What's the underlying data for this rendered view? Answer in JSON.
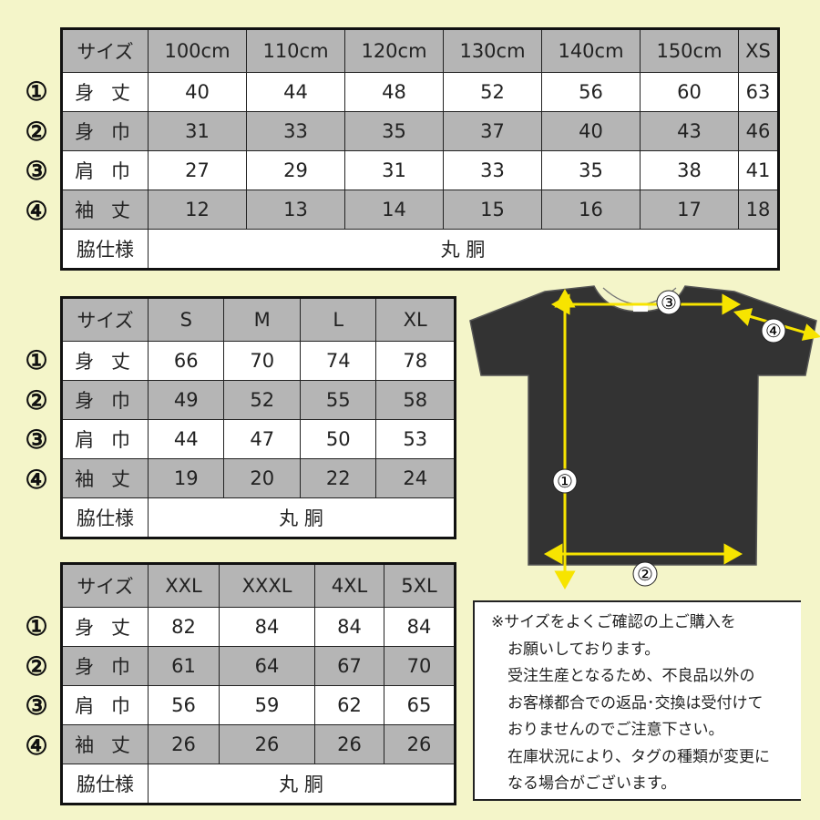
{
  "colors": {
    "background": "#f4f5c9",
    "header_gray": "#b5b5b5",
    "arrow_yellow": "#f7e400",
    "shirt": "#333333"
  },
  "circled": [
    "①",
    "②",
    "③",
    "④"
  ],
  "row_labels": {
    "size": "サイズ",
    "length": "身 丈",
    "width": "身 巾",
    "shoulder": "肩 巾",
    "sleeve": "袖 丈",
    "side": "脇仕様"
  },
  "tables": [
    {
      "sizes": [
        "100cm",
        "110cm",
        "120cm",
        "130cm",
        "140cm",
        "150cm",
        "XS"
      ],
      "length": [
        "40",
        "44",
        "48",
        "52",
        "56",
        "60",
        "63"
      ],
      "width": [
        "31",
        "33",
        "35",
        "37",
        "40",
        "43",
        "46"
      ],
      "shoulder": [
        "27",
        "29",
        "31",
        "33",
        "35",
        "38",
        "41"
      ],
      "sleeve": [
        "12",
        "13",
        "14",
        "15",
        "16",
        "17",
        "18"
      ],
      "side": "丸 胴"
    },
    {
      "sizes": [
        "S",
        "M",
        "L",
        "XL"
      ],
      "length": [
        "66",
        "70",
        "74",
        "78"
      ],
      "width": [
        "49",
        "52",
        "55",
        "58"
      ],
      "shoulder": [
        "44",
        "47",
        "50",
        "53"
      ],
      "sleeve": [
        "19",
        "20",
        "22",
        "24"
      ],
      "side": "丸 胴"
    },
    {
      "sizes": [
        "XXL",
        "XXXL",
        "4XL",
        "5XL"
      ],
      "length": [
        "82",
        "84",
        "84",
        "84"
      ],
      "width": [
        "61",
        "64",
        "67",
        "70"
      ],
      "shoulder": [
        "56",
        "59",
        "62",
        "65"
      ],
      "sleeve": [
        "26",
        "26",
        "26",
        "26"
      ],
      "side": "丸 胴"
    }
  ],
  "diagram_markers": [
    "①",
    "②",
    "③",
    "④"
  ],
  "notes": [
    "※サイズをよくご確認の上ご購入を",
    "お願いしております。",
    "受注生産となるため、不良品以外の",
    "お客様都合での返品･交換は受付けて",
    "おりませんのでご注意下さい。",
    "在庫状況により、タグの種類が変更に",
    "なる場合がございます。"
  ]
}
